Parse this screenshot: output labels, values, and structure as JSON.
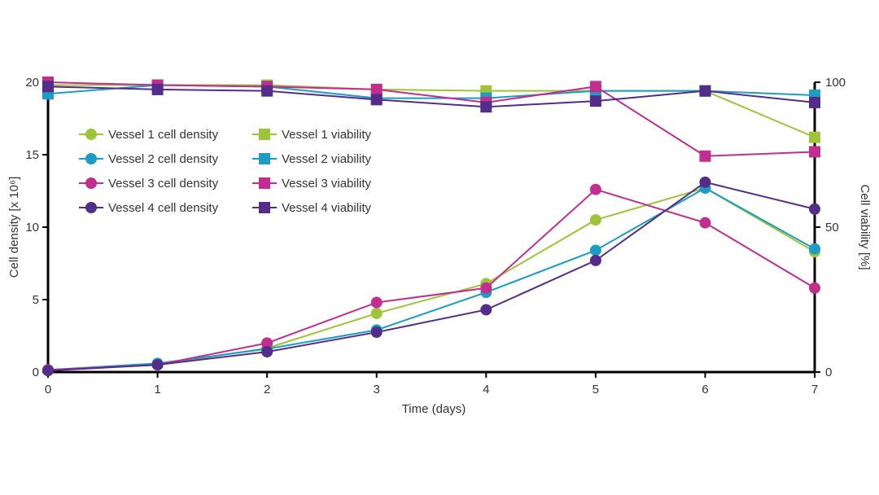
{
  "chart_data": {
    "type": "line",
    "x": [
      0,
      1,
      2,
      3,
      4,
      5,
      6,
      7
    ],
    "xlabel": "Time (days)",
    "ylabel_left": "Cell density [x 10⁶]",
    "ylabel_right": "Cell viability [%]",
    "xlim": [
      0,
      7
    ],
    "ylim_left": [
      0,
      20
    ],
    "ylim_right": [
      0,
      100
    ],
    "x_ticks": [
      "0",
      "1",
      "2",
      "3",
      "4",
      "5",
      "6",
      "7"
    ],
    "y_left_ticks": [
      "0",
      "5",
      "10",
      "15",
      "20"
    ],
    "y_right_ticks": [
      "0",
      "50",
      "100"
    ],
    "grid": false,
    "legend_position": "upper-left",
    "series": [
      {
        "name": "Vessel 1 cell density",
        "axis": "left",
        "marker": "circle",
        "color": "#9dc43a",
        "values": [
          0.15,
          0.5,
          1.65,
          4.05,
          6.1,
          10.5,
          12.7,
          8.3
        ]
      },
      {
        "name": "Vessel 2 cell density",
        "axis": "left",
        "marker": "circle",
        "color": "#1e9cc4",
        "values": [
          0.15,
          0.6,
          1.6,
          2.9,
          5.5,
          8.4,
          12.7,
          8.5
        ]
      },
      {
        "name": "Vessel 3 cell density",
        "axis": "left",
        "marker": "circle",
        "color": "#c22e8e",
        "values": [
          0.15,
          0.5,
          2.0,
          4.8,
          5.8,
          12.6,
          10.3,
          5.8
        ]
      },
      {
        "name": "Vessel 4 cell density",
        "axis": "left",
        "marker": "circle",
        "color": "#542d8a",
        "values": [
          0.1,
          0.5,
          1.4,
          2.75,
          4.3,
          7.7,
          13.1,
          11.25
        ]
      },
      {
        "name": "Vessel 1 viability",
        "axis": "right",
        "marker": "square",
        "color": "#9dc43a",
        "values": [
          99,
          99,
          99,
          97.5,
          97,
          97,
          97,
          81
        ]
      },
      {
        "name": "Vessel 2 viability",
        "axis": "right",
        "marker": "square",
        "color": "#1e9cc4",
        "values": [
          96,
          99,
          98.5,
          94.5,
          94.5,
          97,
          97,
          95.5
        ]
      },
      {
        "name": "Vessel 3 viability",
        "axis": "right",
        "marker": "square",
        "color": "#c22e8e",
        "values": [
          100,
          99,
          98.5,
          97.5,
          93,
          98.5,
          74.5,
          76
        ]
      },
      {
        "name": "Vessel 4 viability",
        "axis": "right",
        "marker": "square",
        "color": "#542d8a",
        "values": [
          98.5,
          97.5,
          97,
          94,
          91.5,
          93.5,
          97,
          93
        ]
      }
    ]
  }
}
